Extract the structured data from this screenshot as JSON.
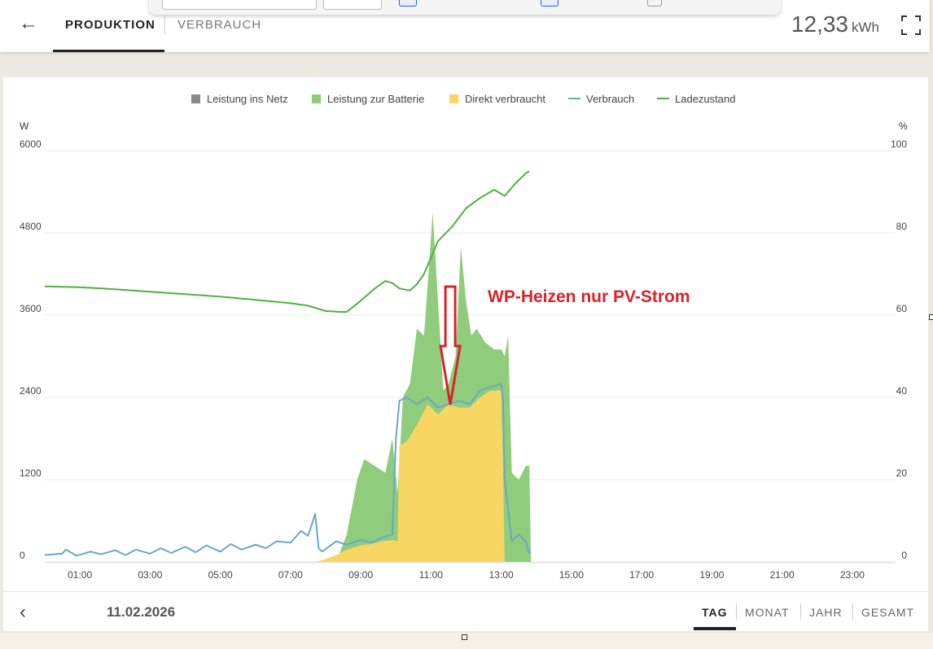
{
  "header": {
    "tabs": [
      {
        "label": "PRODUKTION",
        "active": true
      },
      {
        "label": "VERBRAUCH",
        "active": false
      }
    ],
    "energy_value": "12,33",
    "energy_unit": "kWh"
  },
  "legend": [
    {
      "label": "Leistung ins Netz",
      "color": "#8a8a8a",
      "kind": "area"
    },
    {
      "label": "Leistung zur Batterie",
      "color": "#8fcc7c",
      "kind": "area"
    },
    {
      "label": "Direkt verbraucht",
      "color": "#f7d663",
      "kind": "area"
    },
    {
      "label": "Verbrauch",
      "color": "#6aa8c4",
      "kind": "line"
    },
    {
      "label": "Ladezustand",
      "color": "#4cb33e",
      "kind": "line"
    }
  ],
  "annotation": {
    "text": "WP-Heizen nur PV-Strom",
    "color": "#d9232a"
  },
  "footer": {
    "date": "11.02.2026",
    "periods": [
      {
        "label": "TAG",
        "active": true
      },
      {
        "label": "MONAT",
        "active": false
      },
      {
        "label": "JAHR",
        "active": false
      },
      {
        "label": "GESAMT",
        "active": false
      }
    ]
  },
  "chart_data": {
    "type": "area",
    "x_unit": "hours",
    "x_ticks": [
      "01:00",
      "03:00",
      "05:00",
      "07:00",
      "09:00",
      "11:00",
      "13:00",
      "15:00",
      "17:00",
      "19:00",
      "21:00",
      "23:00"
    ],
    "xlim": [
      0,
      24
    ],
    "y_left": {
      "unit": "W",
      "ylim": [
        0,
        6000
      ],
      "ticks": [
        "0",
        "1200",
        "2400",
        "3600",
        "4800",
        "6000"
      ]
    },
    "y_right": {
      "unit": "%",
      "ylim": [
        0,
        100
      ],
      "ticks": [
        "0",
        "20",
        "40",
        "60",
        "80",
        "100"
      ]
    },
    "grid": true,
    "legend_position": "top",
    "series": [
      {
        "name": "Leistung ins Netz",
        "axis": "left",
        "x": [],
        "y": []
      },
      {
        "name": "Direkt verbraucht",
        "axis": "left",
        "x": [
          7.7,
          8.0,
          8.3,
          8.6,
          9.0,
          9.3,
          9.6,
          9.9,
          10.05,
          10.1,
          10.3,
          10.6,
          10.9,
          11.2,
          11.5,
          11.8,
          12.1,
          12.4,
          12.7,
          13.0,
          13.05,
          13.1
        ],
        "y": [
          0,
          40,
          100,
          180,
          240,
          260,
          300,
          320,
          300,
          1700,
          1750,
          2000,
          2300,
          2150,
          2300,
          2250,
          2250,
          2400,
          2500,
          2500,
          1500,
          0
        ]
      },
      {
        "name": "Leistung zur Batterie",
        "axis": "left",
        "x": [
          8.3,
          8.6,
          8.9,
          9.1,
          9.4,
          9.7,
          9.9,
          10.05,
          10.2,
          10.4,
          10.6,
          10.8,
          10.9,
          11.05,
          11.2,
          11.35,
          11.5,
          11.7,
          11.85,
          12.0,
          12.15,
          12.3,
          12.55,
          12.8,
          13.0,
          13.1,
          13.2,
          13.3,
          13.5,
          13.7,
          13.8,
          13.85
        ],
        "y": [
          0,
          400,
          1200,
          1500,
          1400,
          1300,
          1800,
          1000,
          2400,
          2600,
          3400,
          3300,
          4000,
          5100,
          3800,
          2500,
          2600,
          3000,
          4600,
          3800,
          3300,
          3400,
          3200,
          3100,
          3100,
          3000,
          3300,
          1300,
          1200,
          1400,
          1400,
          0
        ]
      },
      {
        "name": "Verbrauch",
        "axis": "left",
        "x": [
          0,
          0.5,
          0.6,
          0.9,
          1.3,
          1.6,
          2.0,
          2.3,
          2.6,
          3.0,
          3.3,
          3.6,
          4.0,
          4.3,
          4.6,
          5.0,
          5.3,
          5.6,
          6.0,
          6.3,
          6.6,
          7.0,
          7.3,
          7.5,
          7.7,
          7.8,
          7.9,
          8.3,
          8.6,
          9.0,
          9.3,
          9.6,
          9.9,
          10.0,
          10.1,
          10.3,
          10.6,
          10.9,
          11.2,
          11.5,
          11.8,
          12.1,
          12.4,
          12.7,
          13.0,
          13.05,
          13.1,
          13.3,
          13.5,
          13.7,
          13.8
        ],
        "y": [
          100,
          120,
          180,
          90,
          150,
          110,
          170,
          100,
          180,
          120,
          200,
          130,
          220,
          140,
          240,
          150,
          260,
          180,
          250,
          200,
          300,
          280,
          450,
          380,
          700,
          200,
          150,
          300,
          250,
          320,
          280,
          350,
          400,
          1800,
          2350,
          2400,
          2300,
          2400,
          2250,
          2300,
          2350,
          2300,
          2500,
          2550,
          2600,
          2400,
          1200,
          300,
          400,
          300,
          120
        ]
      },
      {
        "name": "Ladezustand",
        "axis": "right",
        "x": [
          0,
          1,
          2,
          3,
          4,
          5,
          6,
          7,
          7.5,
          8,
          8.4,
          8.6,
          9,
          9.4,
          9.7,
          9.9,
          10.1,
          10.4,
          10.6,
          10.8,
          11.0,
          11.2,
          11.6,
          12.0,
          12.4,
          12.8,
          13.1,
          13.4,
          13.7,
          13.8
        ],
        "y": [
          67,
          66.8,
          66.3,
          65.7,
          65.1,
          64.5,
          63.7,
          62.9,
          62.3,
          61.0,
          60.8,
          60.8,
          63.5,
          66.5,
          68.3,
          67.8,
          66.5,
          66.0,
          67.5,
          70.0,
          74.0,
          78.0,
          81.5,
          86.0,
          88.5,
          90.5,
          89.0,
          92.0,
          94.5,
          95.0
        ]
      }
    ]
  }
}
